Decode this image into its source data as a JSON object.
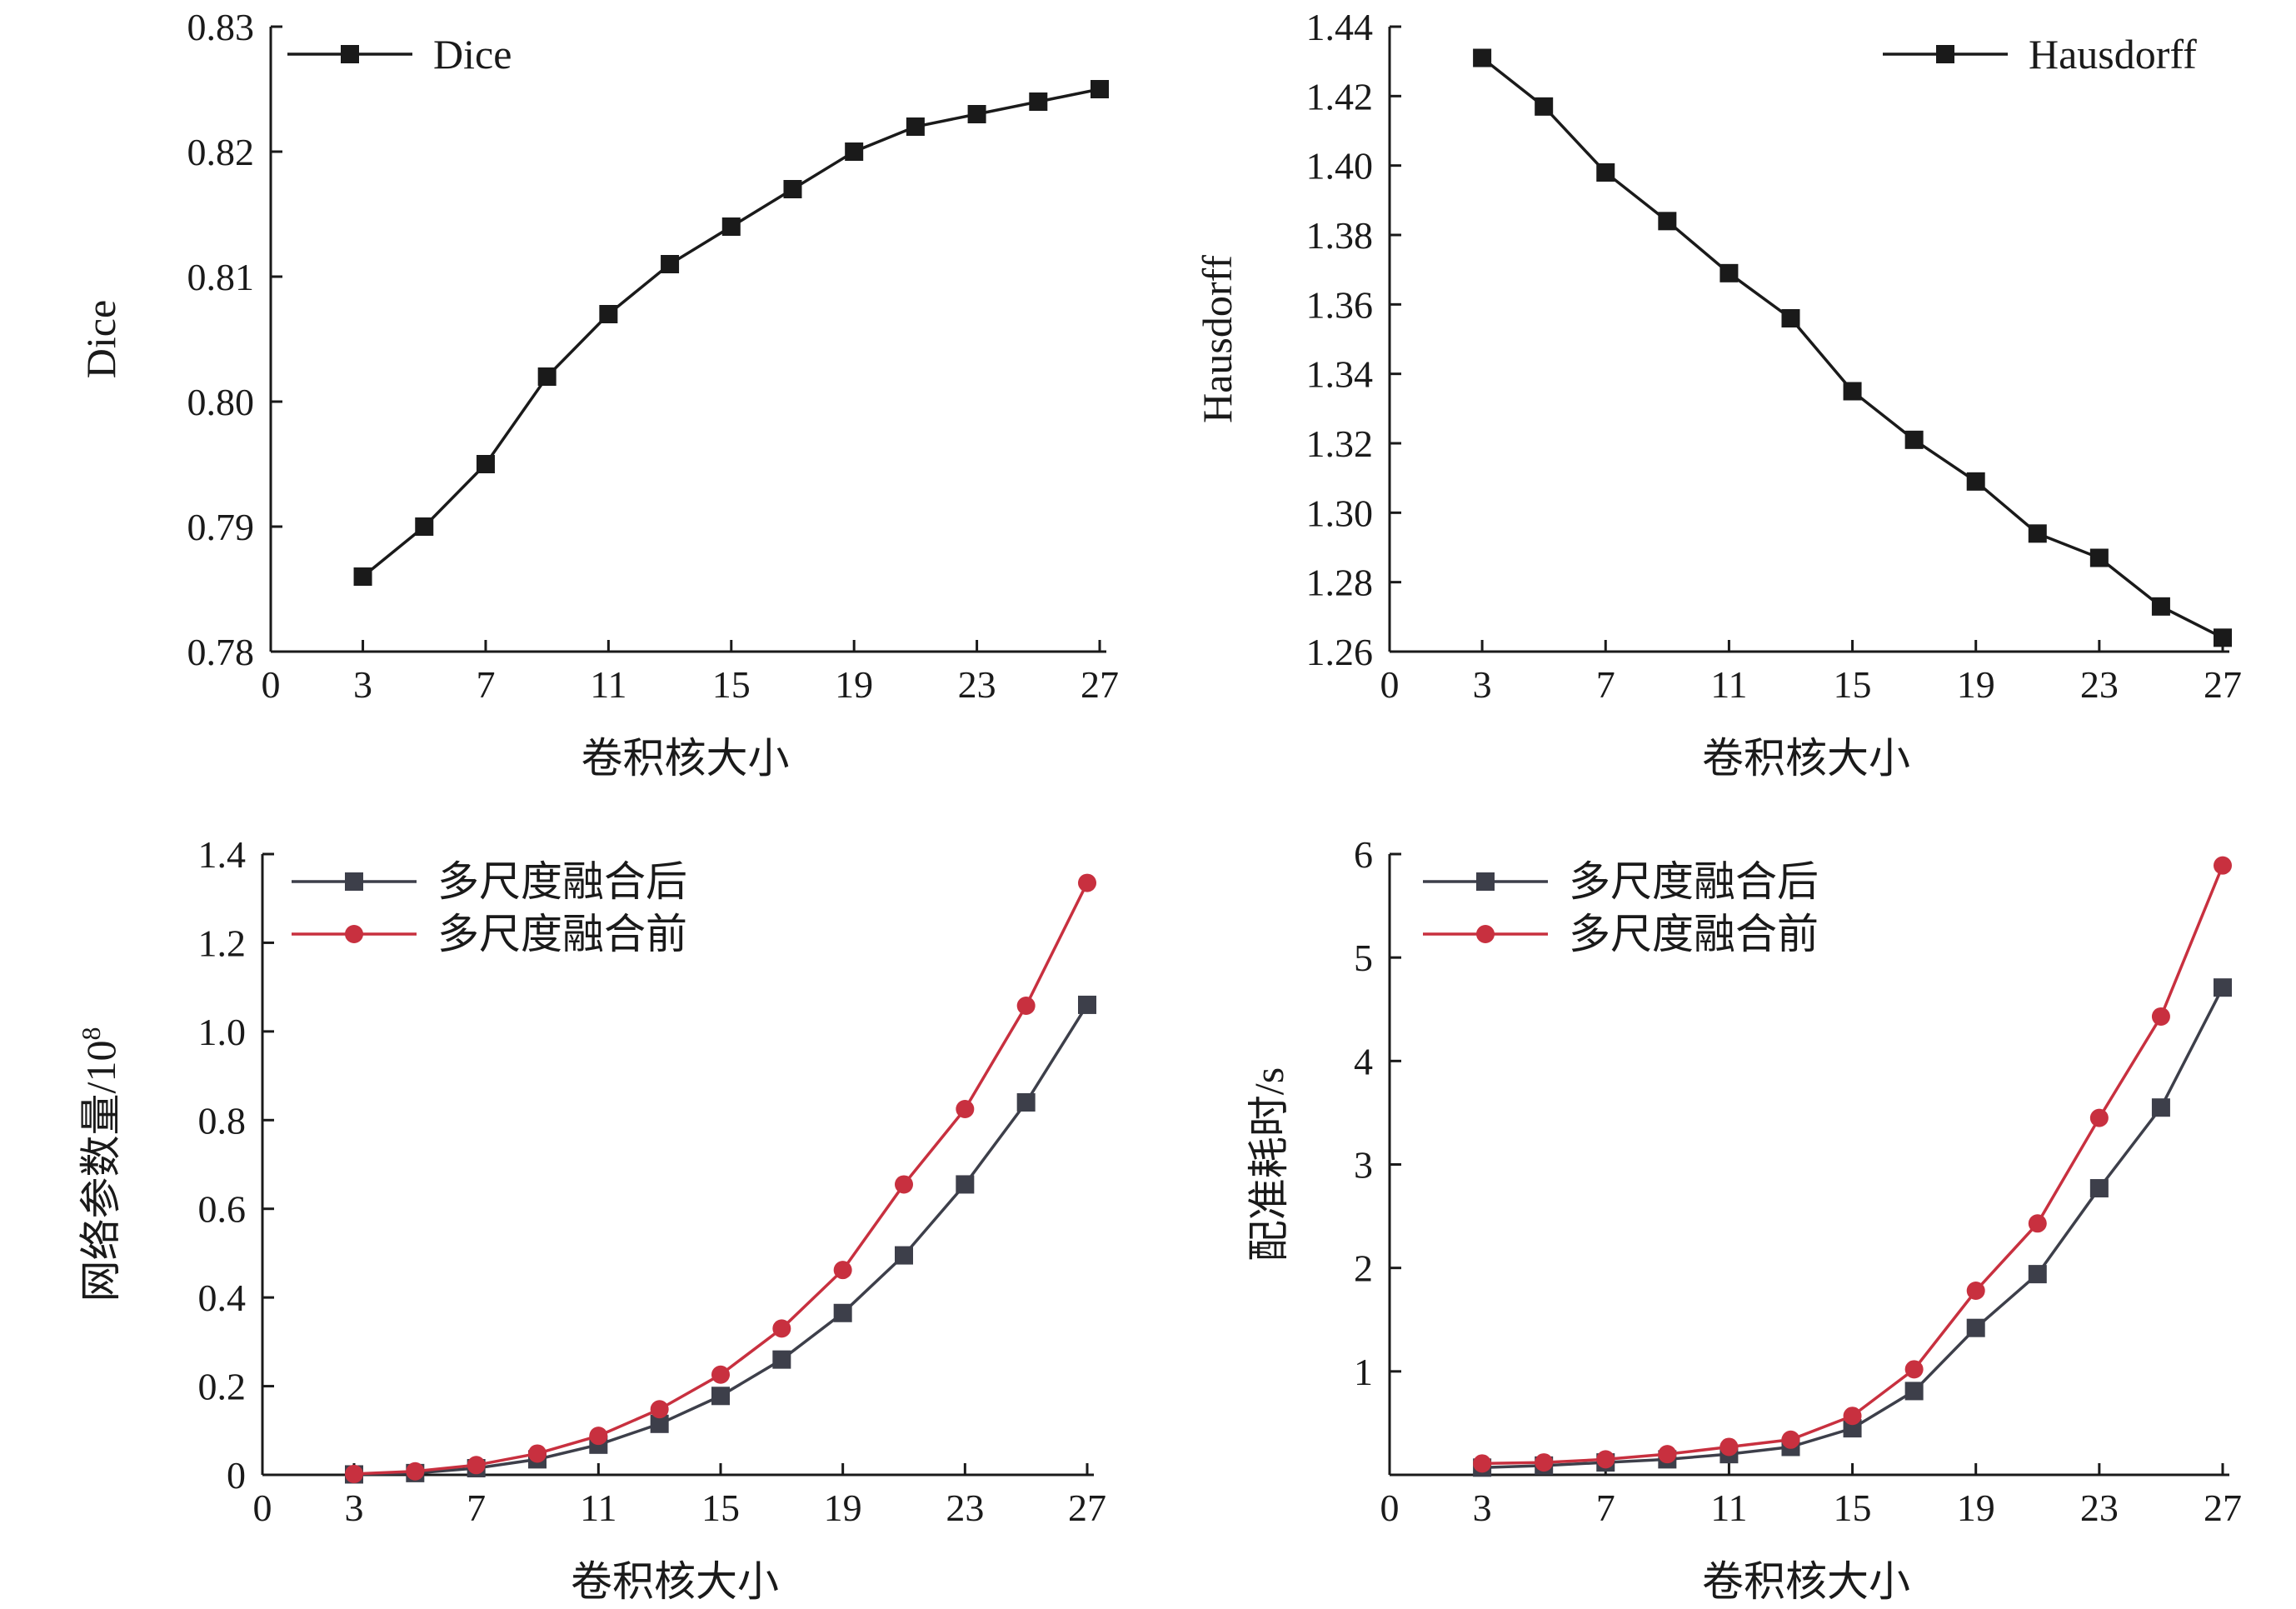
{
  "chart_data": [
    {
      "type": "line",
      "xlabel": "卷积核大小",
      "ylabel": "Dice",
      "xlim": [
        0,
        27
      ],
      "ylim": [
        0.78,
        0.83
      ],
      "xticks": [
        "0",
        "3",
        "7",
        "11",
        "15",
        "19",
        "23",
        "27"
      ],
      "yticks": [
        "0.78",
        "0.79",
        "0.80",
        "0.81",
        "0.82",
        "0.83"
      ],
      "x": [
        3,
        5,
        7,
        9,
        11,
        13,
        15,
        17,
        19,
        21,
        23,
        25,
        27
      ],
      "legend_position": "top-left",
      "series": [
        {
          "name": "Dice",
          "marker": "square",
          "color": "#1a1a1a",
          "values": [
            0.786,
            0.79,
            0.795,
            0.802,
            0.807,
            0.811,
            0.814,
            0.817,
            0.82,
            0.822,
            0.823,
            0.824,
            0.825
          ]
        }
      ]
    },
    {
      "type": "line",
      "xlabel": "卷积核大小",
      "ylabel": "Hausdorff",
      "xlim": [
        0,
        27
      ],
      "ylim": [
        1.26,
        1.44
      ],
      "xticks": [
        "0",
        "3",
        "7",
        "11",
        "15",
        "19",
        "23",
        "27"
      ],
      "yticks": [
        "1.26",
        "1.28",
        "1.30",
        "1.32",
        "1.34",
        "1.36",
        "1.38",
        "1.40",
        "1.42",
        "1.44"
      ],
      "x": [
        3,
        5,
        7,
        9,
        11,
        13,
        15,
        17,
        19,
        21,
        23,
        25,
        27
      ],
      "legend_position": "top-right",
      "series": [
        {
          "name": "Hausdorff",
          "marker": "square",
          "color": "#1a1a1a",
          "values": [
            1.431,
            1.417,
            1.398,
            1.384,
            1.369,
            1.356,
            1.335,
            1.321,
            1.309,
            1.294,
            1.287,
            1.273,
            1.264
          ]
        }
      ]
    },
    {
      "type": "line",
      "xlabel": "卷积核大小",
      "ylabel": "网络参数量/10",
      "ylabel_sup": "8",
      "xlim": [
        0,
        27
      ],
      "ylim": [
        0,
        1.4
      ],
      "xticks": [
        "0",
        "3",
        "7",
        "11",
        "15",
        "19",
        "23",
        "27"
      ],
      "yticks": [
        "0",
        "0.2",
        "0.4",
        "0.6",
        "0.8",
        "1.0",
        "1.2",
        "1.4"
      ],
      "x": [
        3,
        5,
        7,
        9,
        11,
        13,
        15,
        17,
        19,
        21,
        23,
        25,
        27
      ],
      "legend_position": "top-left",
      "series": [
        {
          "name": "多尺度融合后",
          "marker": "square",
          "color": "#3d3f4a",
          "values": [
            0.001,
            0.004,
            0.015,
            0.035,
            0.068,
            0.115,
            0.178,
            0.26,
            0.365,
            0.495,
            0.655,
            0.84,
            1.06
          ]
        },
        {
          "name": "多尺度融合前",
          "marker": "circle",
          "color": "#c8303f",
          "values": [
            0.002,
            0.008,
            0.022,
            0.048,
            0.088,
            0.148,
            0.226,
            0.33,
            0.462,
            0.655,
            0.825,
            1.058,
            1.335
          ]
        }
      ]
    },
    {
      "type": "line",
      "xlabel": "卷积核大小",
      "ylabel": "配准耗时/s",
      "xlim": [
        0,
        27
      ],
      "ylim": [
        0,
        6
      ],
      "xticks": [
        "0",
        "3",
        "7",
        "11",
        "15",
        "19",
        "23",
        "27"
      ],
      "yticks": [
        "1",
        "2",
        "3",
        "4",
        "5",
        "6"
      ],
      "x": [
        3,
        5,
        7,
        9,
        11,
        13,
        15,
        17,
        19,
        21,
        23,
        25,
        27
      ],
      "legend_position": "top-left",
      "series": [
        {
          "name": "多尺度融合后",
          "marker": "square",
          "color": "#3d3f4a",
          "values": [
            0.07,
            0.09,
            0.12,
            0.15,
            0.2,
            0.27,
            0.45,
            0.81,
            1.42,
            1.94,
            2.77,
            3.55,
            4.71
          ]
        },
        {
          "name": "多尺度融合前",
          "marker": "circle",
          "color": "#c8303f",
          "values": [
            0.11,
            0.12,
            0.15,
            0.2,
            0.27,
            0.34,
            0.57,
            1.02,
            1.78,
            2.43,
            3.45,
            4.43,
            5.89
          ]
        }
      ]
    }
  ]
}
